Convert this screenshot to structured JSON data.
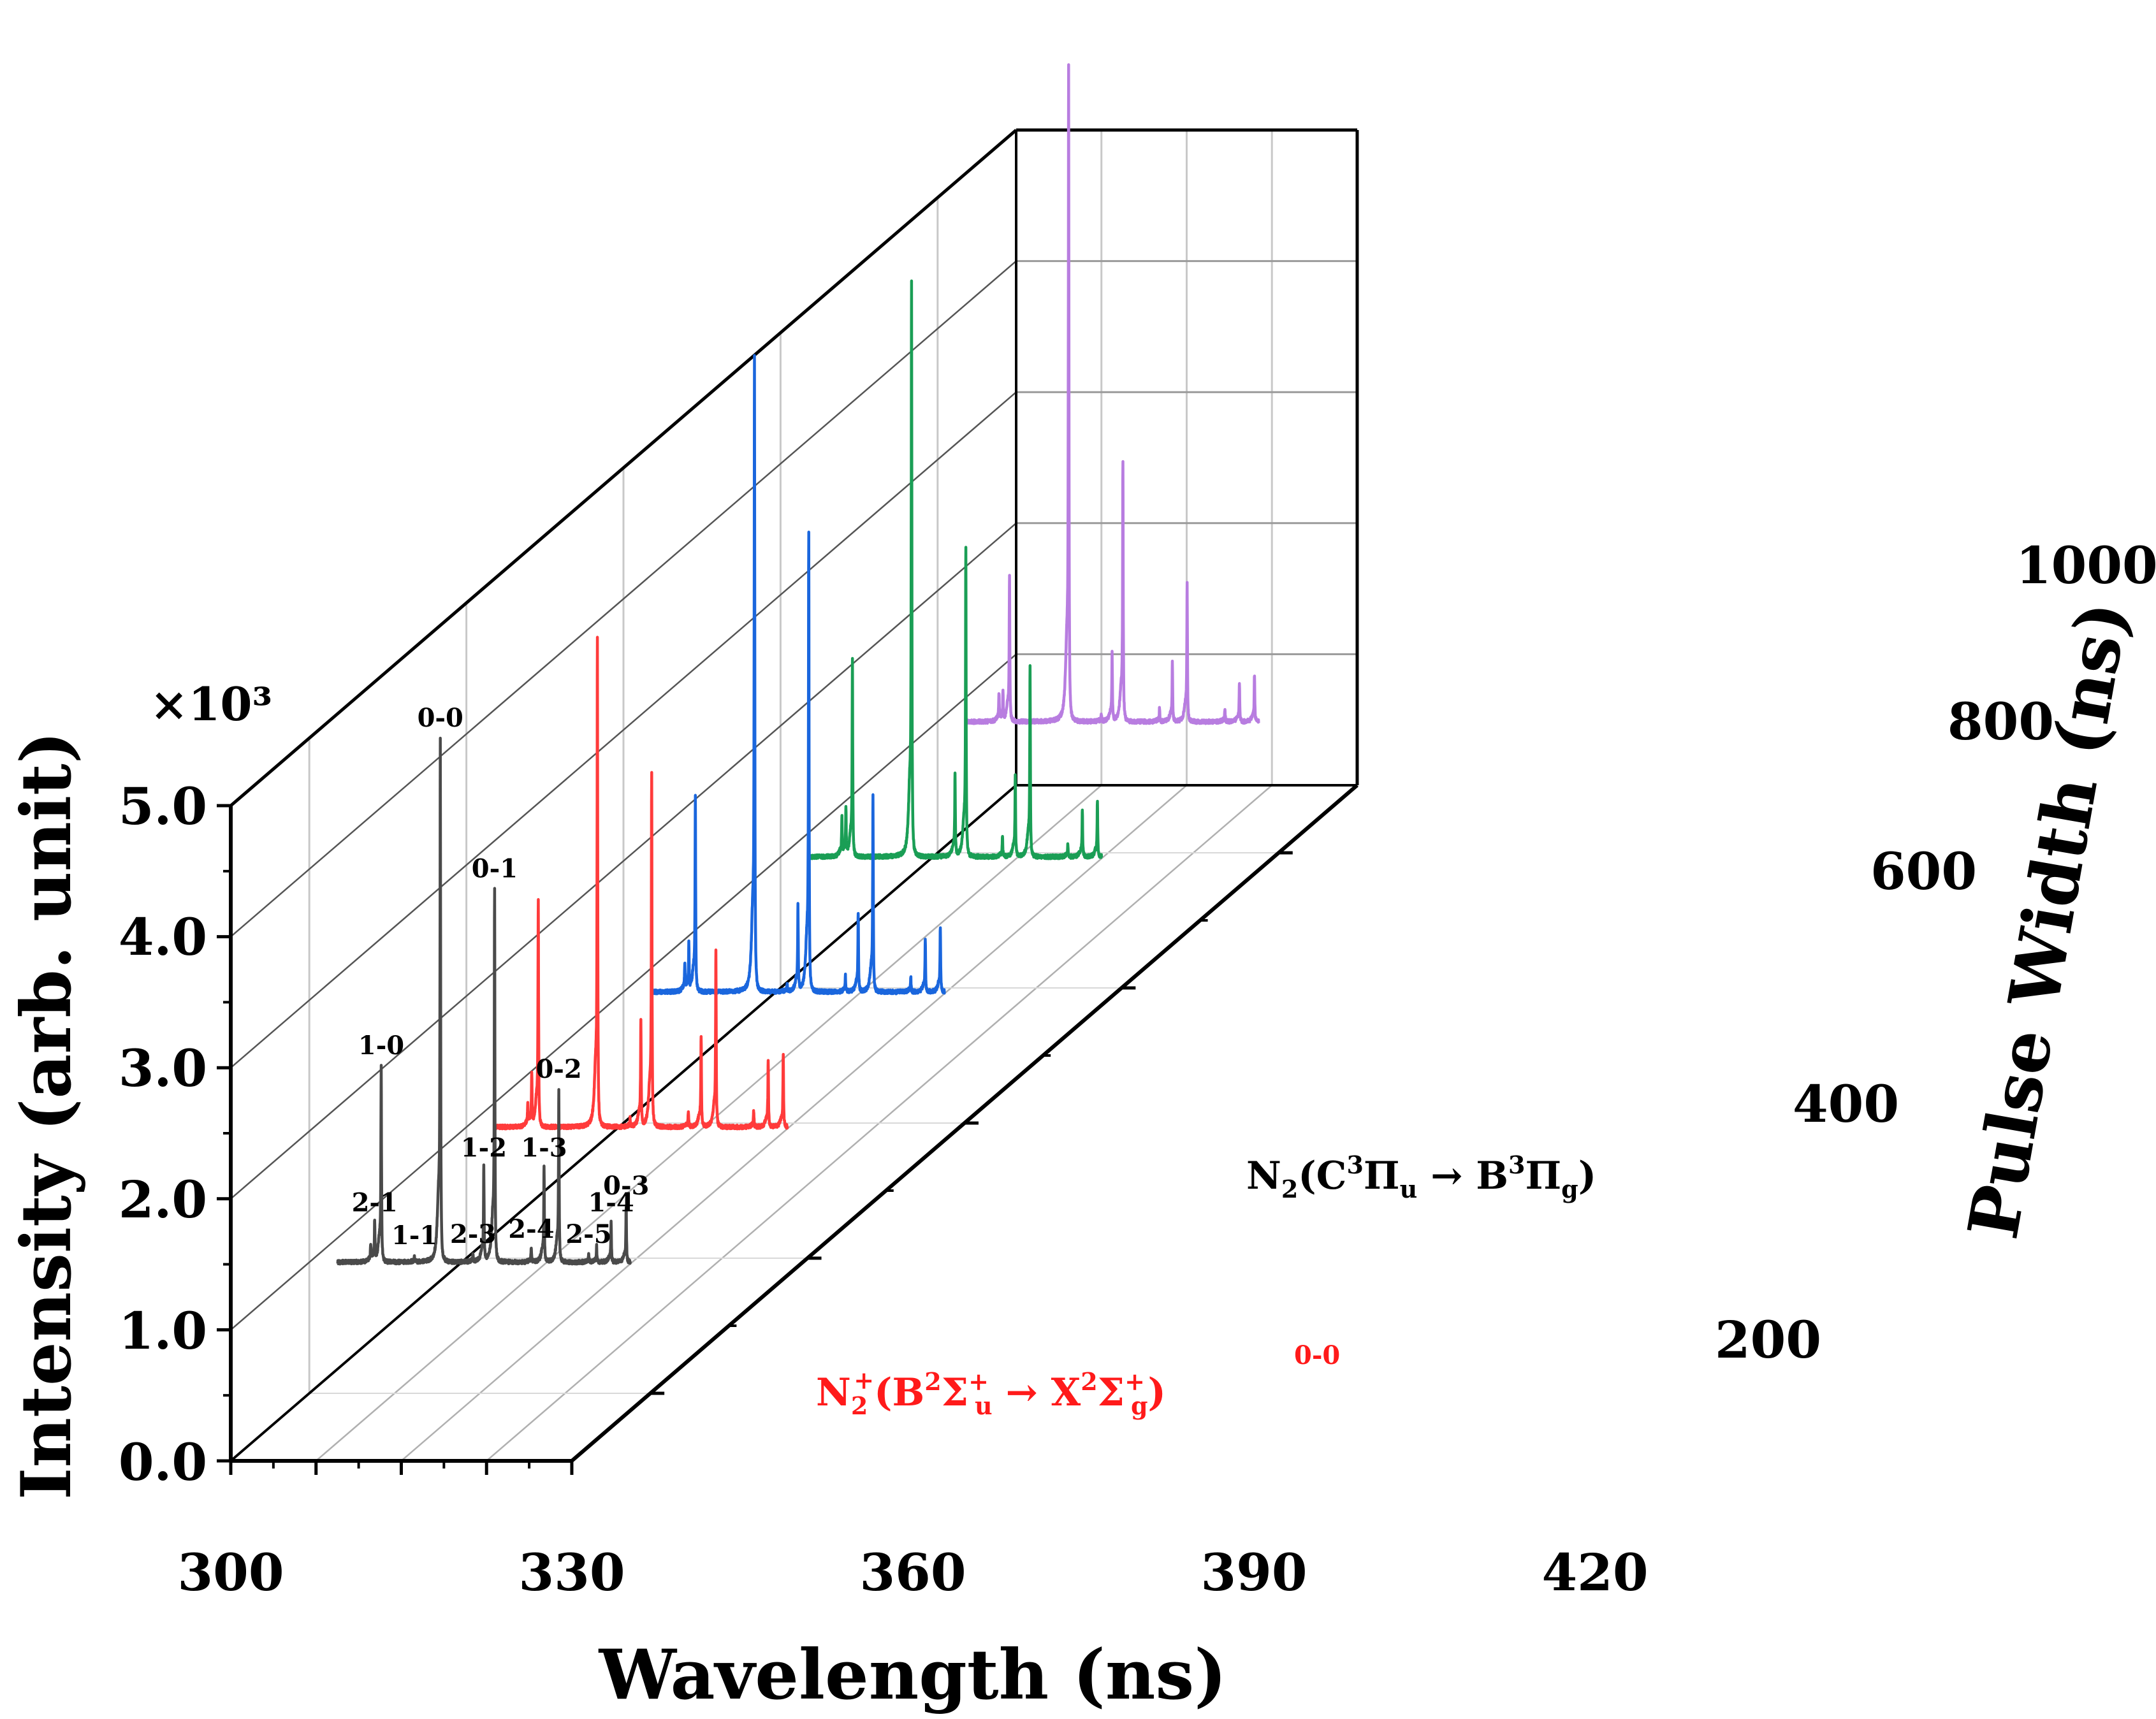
{
  "chart_data": {
    "type": "line",
    "subtype": "3d-waterfall",
    "xlabel": "Wavelength (ns)",
    "ylabel": "Intensity (arb. unit)",
    "zlabel": "Pulse Width (ns)",
    "y_multiplier": "×10³",
    "xlim": [
      300,
      420
    ],
    "ylim": [
      0,
      5.0
    ],
    "zlim": [
      100,
      1100
    ],
    "x_ticks": [
      "300",
      "330",
      "360",
      "390",
      "420"
    ],
    "y_ticks": [
      "0.0",
      "1.0",
      "2.0",
      "3.0",
      "4.0",
      "5.0"
    ],
    "z_ticks": [
      "200",
      "400",
      "600",
      "800",
      "1000"
    ],
    "series": [
      {
        "name": "200 ns",
        "pulse_width": 200,
        "color": "#4a4a4a",
        "offset": 1.0,
        "peaks": [
          [
            321.6,
            0.12
          ],
          [
            323.0,
            0.3
          ],
          [
            325.3,
            1.5
          ],
          [
            337.0,
            0.05
          ],
          [
            346.1,
            4.0
          ],
          [
            357.6,
            0.06
          ],
          [
            361.4,
            0.72
          ],
          [
            365.2,
            2.85
          ],
          [
            378.1,
            0.1
          ],
          [
            382.6,
            0.72
          ],
          [
            387.8,
            1.32
          ],
          [
            398.3,
            0.06
          ],
          [
            401.1,
            0.12
          ],
          [
            406.2,
            0.3
          ],
          [
            411.5,
            0.43
          ]
        ]
      },
      {
        "name": "400 ns",
        "pulse_width": 400,
        "color": "#ff3b3b",
        "offset": 1.0,
        "peaks": [
          [
            321.6,
            0.15
          ],
          [
            323.0,
            0.4
          ],
          [
            325.3,
            1.75
          ],
          [
            346.1,
            3.75
          ],
          [
            357.6,
            0.06
          ],
          [
            361.4,
            0.8
          ],
          [
            365.2,
            2.7
          ],
          [
            378.1,
            0.12
          ],
          [
            382.6,
            0.7
          ],
          [
            387.8,
            1.35
          ],
          [
            401.1,
            0.12
          ],
          [
            406.2,
            0.5
          ],
          [
            411.5,
            0.55
          ]
        ]
      },
      {
        "name": "600 ns",
        "pulse_width": 600,
        "color": "#1a66dd",
        "offset": 1.0,
        "peaks": [
          [
            321.6,
            0.2
          ],
          [
            323.0,
            0.35
          ],
          [
            325.3,
            1.5
          ],
          [
            346.1,
            4.85
          ],
          [
            357.6,
            0.05
          ],
          [
            361.4,
            0.65
          ],
          [
            365.2,
            3.5
          ],
          [
            378.1,
            0.12
          ],
          [
            382.6,
            0.6
          ],
          [
            387.8,
            1.5
          ],
          [
            401.1,
            0.12
          ],
          [
            406.2,
            0.4
          ],
          [
            411.5,
            0.5
          ]
        ]
      },
      {
        "name": "800 ns",
        "pulse_width": 800,
        "color": "#1a9e55",
        "offset": 1.0,
        "peaks": [
          [
            321.6,
            0.28
          ],
          [
            323.0,
            0.35
          ],
          [
            325.3,
            1.5
          ],
          [
            346.1,
            4.4
          ],
          [
            361.4,
            0.62
          ],
          [
            365.2,
            2.35
          ],
          [
            378.1,
            0.15
          ],
          [
            382.6,
            0.62
          ],
          [
            387.8,
            1.45
          ],
          [
            401.1,
            0.1
          ],
          [
            406.2,
            0.36
          ],
          [
            411.5,
            0.42
          ]
        ]
      },
      {
        "name": "1000 ns",
        "pulse_width": 1000,
        "color": "#b87de0",
        "offset": 1.0,
        "peaks": [
          [
            321.6,
            0.2
          ],
          [
            323.0,
            0.22
          ],
          [
            325.3,
            1.12
          ],
          [
            346.1,
            5.0
          ],
          [
            357.6,
            0.05
          ],
          [
            361.4,
            0.52
          ],
          [
            365.2,
            2.0
          ],
          [
            378.1,
            0.1
          ],
          [
            382.6,
            0.45
          ],
          [
            387.8,
            1.05
          ],
          [
            401.1,
            0.1
          ],
          [
            406.2,
            0.3
          ],
          [
            411.5,
            0.36
          ]
        ]
      }
    ],
    "peak_labels": [
      {
        "text": "2-1",
        "x": 323.0,
        "series": 0
      },
      {
        "text": "1-0",
        "x": 325.3,
        "series": 0
      },
      {
        "text": "1-1",
        "x": 337.0,
        "series": 0
      },
      {
        "text": "0-0",
        "x": 346.1,
        "series": 0
      },
      {
        "text": "2-3",
        "x": 357.6,
        "series": 0
      },
      {
        "text": "1-2",
        "x": 361.4,
        "series": 0
      },
      {
        "text": "0-1",
        "x": 365.2,
        "series": 0
      },
      {
        "text": "2-4",
        "x": 378.1,
        "series": 0
      },
      {
        "text": "1-3",
        "x": 382.6,
        "series": 0
      },
      {
        "text": "0-2",
        "x": 387.8,
        "series": 0
      },
      {
        "text": "2-5",
        "x": 398.3,
        "series": 0
      },
      {
        "text": "1-4",
        "x": 406.2,
        "series": 0
      },
      {
        "text": "0-3",
        "x": 411.5,
        "series": 0
      }
    ],
    "annotations": {
      "n2_band": "N₂(C³Πᵤ → B³Π_g)",
      "n2_band_main": "N",
      "n2_band_sub": "2",
      "n2_band_rest_1": "(C",
      "n2_band_sup_1": "3",
      "n2_band_rest_2": "Π",
      "n2_band_sub_2": "u",
      "n2_band_rest_3": " → B",
      "n2_band_sup_3": "3",
      "n2_band_rest_4": "Π",
      "n2_band_sub_4": "g",
      "n2_band_close": ")",
      "n2plus_band_main": "N",
      "n2plus_band_sub": "2",
      "n2plus_band_sup": "+",
      "n2plus_band_rest_1": "(B",
      "n2plus_band_sup_1": "2",
      "n2plus_band_rest_2": "Σ",
      "n2plus_band_supsub_2": "+",
      "n2plus_band_sub_2": "u",
      "n2plus_band_rest_3": " → X",
      "n2plus_band_sup_3": "2",
      "n2plus_band_rest_4": "Σ",
      "n2plus_band_supsub_4": "+",
      "n2plus_band_sub_4": "g",
      "n2plus_band_close": ")",
      "n2plus_peak": "0-0"
    }
  }
}
